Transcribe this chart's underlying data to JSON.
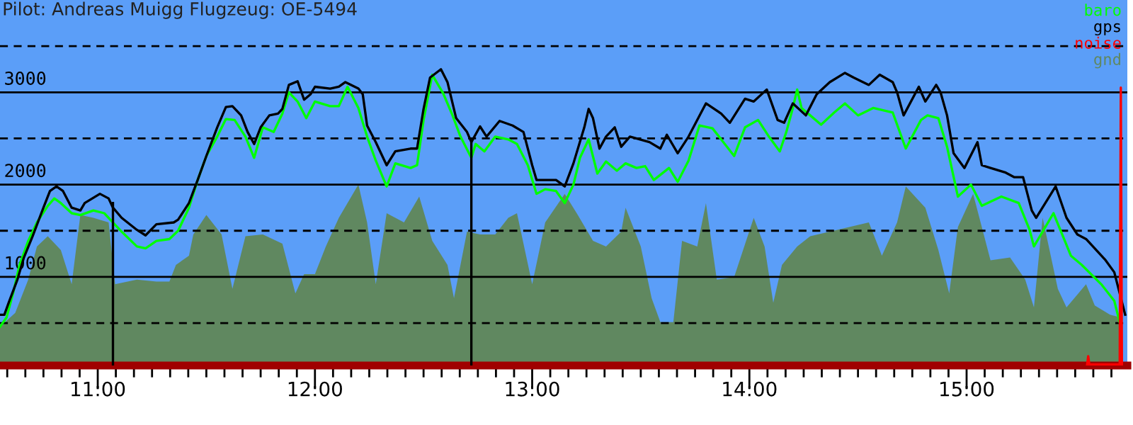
{
  "chart_data": {
    "type": "line",
    "title": "Pilot: Andreas Muigg Flugzeug: OE-5494",
    "xlim": [
      10.55,
      15.74
    ],
    "ylim": [
      40,
      4000
    ],
    "xticks": [
      {
        "value": 10.5833,
        "label": null
      },
      {
        "value": 10.6667,
        "label": null
      },
      {
        "value": 10.75,
        "label": null
      },
      {
        "value": 10.8333,
        "label": null
      },
      {
        "value": 10.9167,
        "label": null
      },
      {
        "value": 11,
        "label": "11:00"
      },
      {
        "value": 11.0833,
        "label": null
      },
      {
        "value": 11.1667,
        "label": null
      },
      {
        "value": 11.25,
        "label": null
      },
      {
        "value": 11.3333,
        "label": null
      },
      {
        "value": 11.4167,
        "label": null
      },
      {
        "value": 11.5,
        "label": null
      },
      {
        "value": 11.5833,
        "label": null
      },
      {
        "value": 11.6667,
        "label": null
      },
      {
        "value": 11.75,
        "label": null
      },
      {
        "value": 11.8333,
        "label": null
      },
      {
        "value": 11.9167,
        "label": null
      },
      {
        "value": 12,
        "label": "12:00"
      },
      {
        "value": 12.0833,
        "label": null
      },
      {
        "value": 12.1667,
        "label": null
      },
      {
        "value": 12.25,
        "label": null
      },
      {
        "value": 12.3333,
        "label": null
      },
      {
        "value": 12.4167,
        "label": null
      },
      {
        "value": 12.5,
        "label": null
      },
      {
        "value": 12.5833,
        "label": null
      },
      {
        "value": 12.6667,
        "label": null
      },
      {
        "value": 12.75,
        "label": null
      },
      {
        "value": 12.8333,
        "label": null
      },
      {
        "value": 12.9167,
        "label": null
      },
      {
        "value": 13,
        "label": "13:00"
      },
      {
        "value": 13.0833,
        "label": null
      },
      {
        "value": 13.1667,
        "label": null
      },
      {
        "value": 13.25,
        "label": null
      },
      {
        "value": 13.3333,
        "label": null
      },
      {
        "value": 13.4167,
        "label": null
      },
      {
        "value": 13.5,
        "label": null
      },
      {
        "value": 13.5833,
        "label": null
      },
      {
        "value": 13.6667,
        "label": null
      },
      {
        "value": 13.75,
        "label": null
      },
      {
        "value": 13.8333,
        "label": null
      },
      {
        "value": 13.9167,
        "label": null
      },
      {
        "value": 14,
        "label": "14:00"
      },
      {
        "value": 14.0833,
        "label": null
      },
      {
        "value": 14.1667,
        "label": null
      },
      {
        "value": 14.25,
        "label": null
      },
      {
        "value": 14.3333,
        "label": null
      },
      {
        "value": 14.4167,
        "label": null
      },
      {
        "value": 14.5,
        "label": null
      },
      {
        "value": 14.5833,
        "label": null
      },
      {
        "value": 14.6667,
        "label": null
      },
      {
        "value": 14.75,
        "label": null
      },
      {
        "value": 14.8333,
        "label": null
      },
      {
        "value": 14.9167,
        "label": null
      },
      {
        "value": 15,
        "label": "15:00"
      },
      {
        "value": 15.0833,
        "label": null
      },
      {
        "value": 15.1667,
        "label": null
      },
      {
        "value": 15.25,
        "label": null
      },
      {
        "value": 15.3333,
        "label": null
      },
      {
        "value": 15.4167,
        "label": null
      },
      {
        "value": 15.5,
        "label": null
      },
      {
        "value": 15.5833,
        "label": null
      },
      {
        "value": 15.6667,
        "label": null
      }
    ],
    "yticks": [
      {
        "value": 500,
        "label": null
      },
      1000,
      {
        "value": 1500,
        "label": null
      },
      2000,
      {
        "value": 2500,
        "label": null
      },
      3000,
      {
        "value": 3500,
        "label": null
      }
    ],
    "grid": "y",
    "legend": "top right",
    "series": [
      {
        "name": "baro",
        "color": "#00ff00",
        "x": [
          10.55,
          10.58,
          10.61,
          10.64,
          10.68,
          10.72,
          10.77,
          10.8,
          10.83,
          10.88,
          10.92,
          10.98,
          11.03,
          11.07,
          11.11,
          11.18,
          11.22,
          11.27,
          11.33,
          11.37,
          11.42,
          11.46,
          11.5,
          11.55,
          11.59,
          11.63,
          11.68,
          11.72,
          11.76,
          11.81,
          11.85,
          11.88,
          11.92,
          11.96,
          12.0,
          12.07,
          12.11,
          12.15,
          12.2,
          12.24,
          12.28,
          12.33,
          12.37,
          12.44,
          12.47,
          12.5,
          12.54,
          12.59,
          12.63,
          12.67,
          12.72,
          12.74,
          12.78,
          12.83,
          12.89,
          12.93,
          12.98,
          13.02,
          13.06,
          13.11,
          13.15,
          13.19,
          13.22,
          13.26,
          13.3,
          13.34,
          13.39,
          13.43,
          13.48,
          13.52,
          13.56,
          13.63,
          13.67,
          13.72,
          13.77,
          13.83,
          13.87,
          13.93,
          13.98,
          14.04,
          14.09,
          14.14,
          14.17,
          14.2,
          14.22,
          14.24,
          14.28,
          14.33,
          14.39,
          14.44,
          14.5,
          14.57,
          14.66,
          14.72,
          14.79,
          14.82,
          14.87,
          14.91,
          14.96,
          15.02,
          15.07,
          15.16,
          15.24,
          15.29,
          15.31,
          15.4,
          15.44,
          15.48,
          15.53,
          15.62,
          15.68,
          15.71
        ],
        "values": [
          460,
          560,
          820,
          1130,
          1390,
          1590,
          1770,
          1850,
          1800,
          1690,
          1670,
          1720,
          1690,
          1590,
          1490,
          1330,
          1310,
          1390,
          1410,
          1500,
          1750,
          2050,
          2310,
          2520,
          2710,
          2700,
          2520,
          2290,
          2620,
          2570,
          2770,
          3000,
          2900,
          2720,
          2900,
          2850,
          2850,
          3060,
          2830,
          2520,
          2260,
          1980,
          2230,
          2180,
          2210,
          2700,
          3190,
          2990,
          2770,
          2520,
          2290,
          2440,
          2360,
          2520,
          2490,
          2440,
          2210,
          1900,
          1950,
          1930,
          1800,
          2000,
          2290,
          2490,
          2120,
          2250,
          2150,
          2230,
          2180,
          2200,
          2050,
          2180,
          2030,
          2260,
          2640,
          2610,
          2490,
          2310,
          2620,
          2700,
          2520,
          2360,
          2570,
          2830,
          3030,
          2830,
          2750,
          2650,
          2780,
          2880,
          2750,
          2830,
          2780,
          2390,
          2700,
          2750,
          2720,
          2410,
          1870,
          2000,
          1770,
          1870,
          1800,
          1510,
          1330,
          1690,
          1460,
          1230,
          1130,
          920,
          740,
          460
        ]
      },
      {
        "name": "gps",
        "color": "#000000",
        "x": [
          10.55,
          10.57,
          10.59,
          10.63,
          10.66,
          10.7,
          10.75,
          10.78,
          10.81,
          10.84,
          10.88,
          10.92,
          10.94,
          11.01,
          11.05,
          11.07,
          11.11,
          11.18,
          11.22,
          11.27,
          11.35,
          11.37,
          11.42,
          11.46,
          11.5,
          11.55,
          11.59,
          11.62,
          11.66,
          11.69,
          11.72,
          11.75,
          11.79,
          11.83,
          11.85,
          11.88,
          11.92,
          11.95,
          11.98,
          12.0,
          12.07,
          12.11,
          12.14,
          12.2,
          12.22,
          12.24,
          12.28,
          12.33,
          12.37,
          12.44,
          12.47,
          12.5,
          12.53,
          12.58,
          12.61,
          12.65,
          12.7,
          12.72,
          12.76,
          12.79,
          12.85,
          12.91,
          12.96,
          13.0,
          13.02,
          13.11,
          13.15,
          13.19,
          13.24,
          13.26,
          13.28,
          13.31,
          13.34,
          13.38,
          13.41,
          13.45,
          13.54,
          13.59,
          13.62,
          13.67,
          13.72,
          13.8,
          13.87,
          13.91,
          13.98,
          14.02,
          14.08,
          14.13,
          14.16,
          14.2,
          14.26,
          14.31,
          14.37,
          14.44,
          14.48,
          14.55,
          14.6,
          14.66,
          14.68,
          14.71,
          14.78,
          14.81,
          14.86,
          14.88,
          14.91,
          14.94,
          14.99,
          15.05,
          15.07,
          15.11,
          15.18,
          15.22,
          15.26,
          15.3,
          15.32,
          15.41,
          15.46,
          15.51,
          15.55,
          15.64,
          15.68,
          15.73
        ],
        "values": [
          590,
          590,
          720,
          970,
          1210,
          1440,
          1750,
          1930,
          1980,
          1930,
          1750,
          1720,
          1800,
          1900,
          1850,
          1750,
          1640,
          1510,
          1450,
          1570,
          1590,
          1620,
          1800,
          2050,
          2310,
          2620,
          2840,
          2850,
          2750,
          2570,
          2440,
          2620,
          2750,
          2770,
          2820,
          3080,
          3120,
          2920,
          2980,
          3060,
          3040,
          3060,
          3110,
          3040,
          2980,
          2640,
          2460,
          2210,
          2360,
          2390,
          2390,
          2820,
          3160,
          3250,
          3110,
          2720,
          2570,
          2460,
          2630,
          2520,
          2690,
          2640,
          2570,
          2210,
          2050,
          2050,
          1980,
          2230,
          2620,
          2820,
          2720,
          2390,
          2520,
          2620,
          2410,
          2520,
          2460,
          2390,
          2540,
          2340,
          2520,
          2880,
          2770,
          2670,
          2930,
          2900,
          3030,
          2700,
          2670,
          2880,
          2750,
          2980,
          3110,
          3210,
          3160,
          3080,
          3190,
          3110,
          3000,
          2750,
          3060,
          2900,
          3080,
          3000,
          2750,
          2340,
          2180,
          2460,
          2210,
          2180,
          2130,
          2080,
          2080,
          1720,
          1640,
          1980,
          1640,
          1460,
          1410,
          1180,
          1050,
          590
        ]
      },
      {
        "name": "noise",
        "color": "#ff0000",
        "x": [
          15.555,
          15.56,
          15.565,
          15.705,
          15.71,
          15.715
        ],
        "values": [
          50,
          140,
          50,
          50,
          3050,
          50
        ]
      },
      {
        "color": "#000000",
        "x": [
          11.07,
          11.07
        ],
        "values": [
          50,
          1800
        ]
      },
      {
        "color": "#000000",
        "x": [
          12.72,
          12.72
        ],
        "values": [
          50,
          2460
        ]
      },
      {
        "type": "area",
        "name": "gnd",
        "color": "#608860",
        "x": [
          10.55,
          10.62,
          10.68,
          10.72,
          10.77,
          10.83,
          10.88,
          10.92,
          10.98,
          11.05,
          11.08,
          11.18,
          11.27,
          11.33,
          11.36,
          11.42,
          11.44,
          11.5,
          11.57,
          11.62,
          11.68,
          11.76,
          11.85,
          11.91,
          11.95,
          12.0,
          12.05,
          12.11,
          12.2,
          12.24,
          12.28,
          12.33,
          12.41,
          12.48,
          12.54,
          12.61,
          12.64,
          12.7,
          12.76,
          12.83,
          12.89,
          12.93,
          13.0,
          13.06,
          13.15,
          13.21,
          13.28,
          13.34,
          13.41,
          13.43,
          13.5,
          13.55,
          13.59,
          13.65,
          13.69,
          13.76,
          13.8,
          13.85,
          13.93,
          14.02,
          14.07,
          14.11,
          14.15,
          14.22,
          14.28,
          14.37,
          14.46,
          14.55,
          14.61,
          14.68,
          14.72,
          14.81,
          14.87,
          14.92,
          14.96,
          15.03,
          15.07,
          15.11,
          15.2,
          15.27,
          15.31,
          15.35,
          15.42,
          15.46,
          15.55,
          15.59,
          15.66,
          15.71
        ],
        "values": [
          460,
          610,
          970,
          1330,
          1440,
          1290,
          920,
          1670,
          1640,
          1590,
          920,
          970,
          950,
          950,
          1130,
          1230,
          1460,
          1670,
          1460,
          870,
          1440,
          1460,
          1360,
          820,
          1030,
          1030,
          1330,
          1640,
          2000,
          1590,
          920,
          1690,
          1590,
          1870,
          1390,
          1130,
          770,
          1490,
          1460,
          1460,
          1640,
          1690,
          920,
          1590,
          1900,
          1670,
          1390,
          1330,
          1490,
          1750,
          1330,
          770,
          510,
          510,
          1390,
          1330,
          1800,
          970,
          1000,
          1640,
          1330,
          720,
          1130,
          1330,
          1440,
          1490,
          1540,
          1590,
          1230,
          1590,
          1980,
          1750,
          1290,
          820,
          1540,
          1900,
          1540,
          1180,
          1210,
          970,
          670,
          1640,
          870,
          670,
          920,
          690,
          590,
          560
        ]
      }
    ]
  }
}
